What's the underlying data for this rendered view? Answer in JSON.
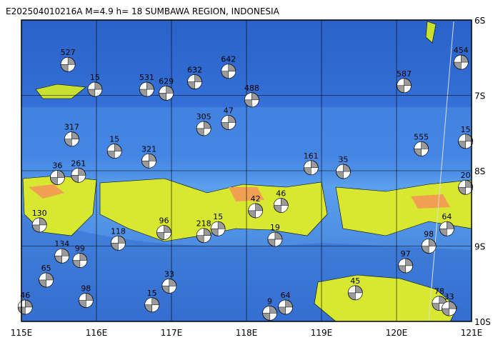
{
  "header": {
    "title": "E202504010216A M=4.9 h= 18 SUMBAWA REGION, INDONESIA"
  },
  "map": {
    "lon_range": [
      115,
      121
    ],
    "lat_range": [
      -6,
      -10
    ],
    "lon_ticks": [
      {
        "value": 115,
        "label": "115E"
      },
      {
        "value": 116,
        "label": "116E"
      },
      {
        "value": 117,
        "label": "117E"
      },
      {
        "value": 118,
        "label": "118E"
      },
      {
        "value": 119,
        "label": "119E"
      },
      {
        "value": 120,
        "label": "120E"
      },
      {
        "value": 121,
        "label": "121E"
      }
    ],
    "lat_ticks": [
      {
        "value": -6,
        "label": "6S"
      },
      {
        "value": -7,
        "label": "7S"
      },
      {
        "value": -8,
        "label": "8S"
      },
      {
        "value": -9,
        "label": "9S"
      },
      {
        "value": -10,
        "label": "10S"
      }
    ],
    "events": [
      {
        "lon": 115.62,
        "lat": -6.59,
        "label": "527"
      },
      {
        "lon": 115.98,
        "lat": -6.92,
        "label": "15"
      },
      {
        "lon": 116.67,
        "lat": -6.92,
        "label": "531"
      },
      {
        "lon": 116.93,
        "lat": -6.97,
        "label": "629"
      },
      {
        "lon": 117.31,
        "lat": -6.82,
        "label": "632"
      },
      {
        "lon": 117.76,
        "lat": -6.68,
        "label": "642"
      },
      {
        "lon": 118.07,
        "lat": -7.06,
        "label": "488"
      },
      {
        "lon": 115.67,
        "lat": -7.58,
        "label": "317"
      },
      {
        "lon": 116.24,
        "lat": -7.74,
        "label": "15"
      },
      {
        "lon": 116.7,
        "lat": -7.87,
        "label": "321"
      },
      {
        "lon": 115.48,
        "lat": -8.09,
        "label": "36"
      },
      {
        "lon": 115.76,
        "lat": -8.06,
        "label": "261"
      },
      {
        "lon": 115.24,
        "lat": -8.72,
        "label": "130"
      },
      {
        "lon": 115.54,
        "lat": -9.13,
        "label": "134"
      },
      {
        "lon": 115.78,
        "lat": -9.19,
        "label": "99"
      },
      {
        "lon": 115.33,
        "lat": -9.45,
        "label": "65"
      },
      {
        "lon": 115.86,
        "lat": -9.72,
        "label": "98"
      },
      {
        "lon": 115.05,
        "lat": -9.81,
        "label": "46"
      },
      {
        "lon": 116.29,
        "lat": -8.96,
        "label": "118"
      },
      {
        "lon": 116.9,
        "lat": -8.82,
        "label": "96"
      },
      {
        "lon": 117.43,
        "lat": -8.86,
        "label": "218"
      },
      {
        "lon": 117.62,
        "lat": -8.77,
        "label": "15"
      },
      {
        "lon": 116.97,
        "lat": -9.53,
        "label": "33"
      },
      {
        "lon": 116.74,
        "lat": -9.78,
        "label": "15"
      },
      {
        "lon": 118.12,
        "lat": -8.53,
        "label": "42"
      },
      {
        "lon": 118.46,
        "lat": -8.46,
        "label": "46"
      },
      {
        "lon": 118.38,
        "lat": -8.91,
        "label": "19"
      },
      {
        "lon": 118.52,
        "lat": -9.81,
        "label": "64"
      },
      {
        "lon": 118.31,
        "lat": -9.89,
        "label": "9"
      },
      {
        "lon": 119.29,
        "lat": -8.01,
        "label": "35"
      },
      {
        "lon": 119.45,
        "lat": -9.62,
        "label": "45"
      },
      {
        "lon": 120.12,
        "lat": -9.26,
        "label": "97"
      },
      {
        "lon": 120.57,
        "lat": -9.76,
        "label": "78"
      },
      {
        "lon": 120.7,
        "lat": -9.83,
        "label": "33"
      },
      {
        "lon": 120.67,
        "lat": -8.77,
        "label": "64"
      },
      {
        "lon": 120.43,
        "lat": -9.0,
        "label": "98"
      },
      {
        "lon": 120.1,
        "lat": -6.87,
        "label": "587"
      },
      {
        "lon": 120.33,
        "lat": -7.71,
        "label": "555"
      },
      {
        "lon": 120.92,
        "lat": -8.22,
        "label": "20"
      },
      {
        "lon": 120.92,
        "lat": -7.61,
        "label": "15"
      },
      {
        "lon": 120.86,
        "lat": -6.56,
        "label": "454"
      },
      {
        "lon": 117.43,
        "lat": -7.44,
        "label": "305"
      },
      {
        "lon": 117.76,
        "lat": -7.36,
        "label": "47"
      },
      {
        "lon": 118.86,
        "lat": -7.96,
        "label": "161"
      }
    ]
  }
}
